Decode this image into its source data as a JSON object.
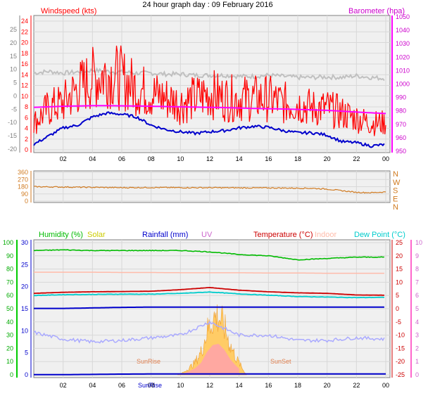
{
  "title": "24 hour graph day : 09 February 2016",
  "hours": [
    "02",
    "04",
    "06",
    "08",
    "10",
    "12",
    "14",
    "16",
    "18",
    "20",
    "22",
    "00"
  ],
  "hours_bottom": [
    "02",
    "04",
    "06",
    "08",
    "10",
    "12",
    "14",
    "16",
    "18",
    "20",
    "22",
    "00"
  ],
  "sunrise_label": "SunRise",
  "sunset_label": "SunSet",
  "sunrise_axis_label": "SunRise",
  "colors": {
    "wind": "#ff0000",
    "gust": "#ff0000",
    "avgwind": "#0000cc",
    "baro": "#ff00ff",
    "grey": "#c0c0c0",
    "dir": "#d07a20",
    "humidity": "#00bb00",
    "solar": "#cccc00",
    "rain": "#0000cc",
    "uv": "#cc66cc",
    "temp": "#cc0000",
    "indoor": "#ffbbaa",
    "dew": "#00cccc",
    "solarfill": "#ffcc66",
    "background": "#f0f0f0"
  },
  "chart_data": [
    {
      "type": "line",
      "name": "wind-baro",
      "ylabel_left": "Windspeed (kts)",
      "ylabel_right": "Barometer (hpa)",
      "left_ticks": [
        "24",
        "22",
        "20",
        "18",
        "16",
        "14",
        "12",
        "10",
        "8",
        "6",
        "4",
        "2",
        "0"
      ],
      "far_left_ticks": [
        "25",
        "20",
        "15",
        "10",
        "5",
        "0",
        "-5",
        "-10",
        "-15",
        "-20"
      ],
      "right_ticks": [
        "1050",
        "1040",
        "1030",
        "1020",
        "1010",
        "1000",
        "990",
        "980",
        "970",
        "960",
        "950"
      ],
      "ylim_wind": [
        0,
        25
      ],
      "ylim_baro": [
        950,
        1050
      ],
      "x_hours": [
        0,
        1,
        2,
        3,
        4,
        5,
        6,
        7,
        8,
        9,
        10,
        11,
        12,
        13,
        14,
        15,
        16,
        17,
        18,
        19,
        20,
        21,
        22,
        23,
        24
      ],
      "series": [
        {
          "key": "gust",
          "values": [
            6,
            9,
            10,
            13,
            15,
            16,
            15,
            13,
            12,
            11,
            10,
            11,
            12,
            11,
            11,
            11,
            11,
            10,
            10,
            9,
            9,
            8,
            7,
            6,
            6
          ]
        },
        {
          "key": "avgwind",
          "values": [
            1.5,
            3,
            4.5,
            5,
            6.5,
            7.2,
            7,
            6.5,
            5,
            4.2,
            3.8,
            3.5,
            3.8,
            4,
            4.5,
            4.8,
            4.6,
            4,
            3.6,
            3.6,
            3.2,
            2,
            1.8,
            1.2,
            1.5
          ]
        },
        {
          "key": "baro",
          "values": [
            983,
            983.4,
            983.8,
            984,
            984.2,
            984.2,
            984.1,
            984,
            983.8,
            983.6,
            983.4,
            983.2,
            983,
            982.8,
            982.5,
            982.2,
            982,
            981.8,
            981.5,
            981.2,
            980.8,
            980.2,
            979.6,
            979,
            978.5
          ]
        },
        {
          "key": "grey",
          "values": [
            5,
            5.3,
            5,
            5.2,
            5.5,
            5.3,
            5.2,
            5,
            5,
            4.8,
            4.8,
            4.6,
            4.6,
            4.6,
            4.4,
            4.4,
            4.6,
            4.4,
            4.2,
            4.2,
            4.3,
            4.2,
            4.5,
            4.2,
            4
          ]
        }
      ]
    },
    {
      "type": "line",
      "name": "wind-direction",
      "left_ticks": [
        "360",
        "270",
        "180",
        "90",
        "0"
      ],
      "right_labels": [
        "N",
        "W",
        "S",
        "E",
        "N"
      ],
      "ylim": [
        0,
        360
      ],
      "x_hours": [
        0,
        2,
        4,
        6,
        8,
        10,
        12,
        14,
        16,
        18,
        19,
        20,
        21,
        22,
        23,
        24
      ],
      "values": [
        180,
        176,
        172,
        168,
        170,
        168,
        168,
        166,
        165,
        162,
        160,
        150,
        130,
        110,
        105,
        115
      ]
    },
    {
      "type": "line",
      "name": "humidity-solar-temp",
      "legend": [
        "Humidity (%)",
        "Solar",
        "Rainfall (mm)",
        "UV",
        "Temperature (°C)",
        "Indoor",
        "Dew Point (°C)"
      ],
      "humidity_ticks": [
        "100",
        "90",
        "80",
        "70",
        "60",
        "50",
        "40",
        "30",
        "20",
        "10",
        "0"
      ],
      "rain_ticks": [
        "30",
        "25",
        "20",
        "15",
        "10",
        "5",
        "0"
      ],
      "temp_ticks": [
        "25",
        "20",
        "15",
        "10",
        "5",
        "0",
        "-5",
        "-10",
        "-15",
        "-20",
        "-25"
      ],
      "uv_ticks": [
        "10",
        "9",
        "8",
        "7",
        "6",
        "5",
        "4",
        "3",
        "2",
        "1",
        "0"
      ],
      "ylim_temp": [
        -25,
        25
      ],
      "x_hours": [
        0,
        2,
        4,
        6,
        8,
        10,
        12,
        14,
        16,
        18,
        20,
        22,
        24
      ],
      "series": [
        {
          "key": "humidity",
          "values": [
            94,
            94.5,
            94,
            94,
            94,
            94,
            93,
            91,
            90,
            87,
            88,
            89,
            89
          ]
        },
        {
          "key": "indoor",
          "values": [
            13.8,
            13.8,
            13.8,
            13.7,
            13.7,
            13.6,
            13.6,
            13.6,
            13.5,
            13.5,
            13.4,
            13.4,
            13.4
          ]
        },
        {
          "key": "temp",
          "values": [
            5.8,
            6.2,
            6.4,
            6.5,
            6.6,
            7.2,
            8,
            7,
            6.4,
            6,
            5.8,
            5.2,
            5.1
          ]
        },
        {
          "key": "dew",
          "values": [
            5.0,
            5.3,
            5.4,
            5.5,
            5.5,
            5.8,
            6.3,
            5.6,
            5.1,
            4.6,
            4.4,
            4.2,
            4.3
          ]
        },
        {
          "key": "uv",
          "values": [
            3.2,
            2.7,
            2.5,
            2.6,
            2.8,
            3.0,
            4.0,
            3.0,
            3.0,
            2.6,
            2.6,
            2.8,
            2.7
          ]
        },
        {
          "key": "rain",
          "values": [
            0.1,
            0.1,
            0.3,
            0.5,
            0.6,
            0.6,
            0.6,
            0.6,
            0.6,
            0.6,
            0.6,
            0.6,
            0.6
          ]
        },
        {
          "key": "solar_x",
          "values": [
            9.8,
            10.2,
            10.6,
            11,
            11.4,
            11.8,
            12.2,
            12.6,
            13,
            13.4,
            13.8,
            14.2,
            14.5
          ]
        },
        {
          "key": "solar",
          "values": [
            0,
            20,
            60,
            110,
            200,
            380,
            500,
            520,
            420,
            260,
            150,
            60,
            0
          ]
        }
      ]
    }
  ]
}
